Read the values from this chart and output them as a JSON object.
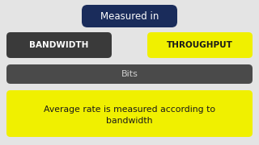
{
  "bg_color": "#e4e4e4",
  "measured_in_box_color": "#1a2c5b",
  "measured_in_text": "Measured in",
  "measured_in_text_color": "#ffffff",
  "bandwidth_box_color": "#3a3a3a",
  "bandwidth_text": "BANDWIDTH",
  "bandwidth_text_color": "#ffffff",
  "throughput_box_color": "#f0f000",
  "throughput_text": "THROUGHPUT",
  "throughput_text_color": "#1a1a1a",
  "bits_box_color": "#4a4a4a",
  "bits_text": "Bits",
  "bits_text_color": "#d0d0d0",
  "avg_box_color": "#f0f000",
  "avg_text": "Average rate is measured according to\nbandwidth",
  "avg_text_color": "#1a1a1a",
  "fig_w": 3.2,
  "fig_h": 1.8,
  "dpi": 100
}
